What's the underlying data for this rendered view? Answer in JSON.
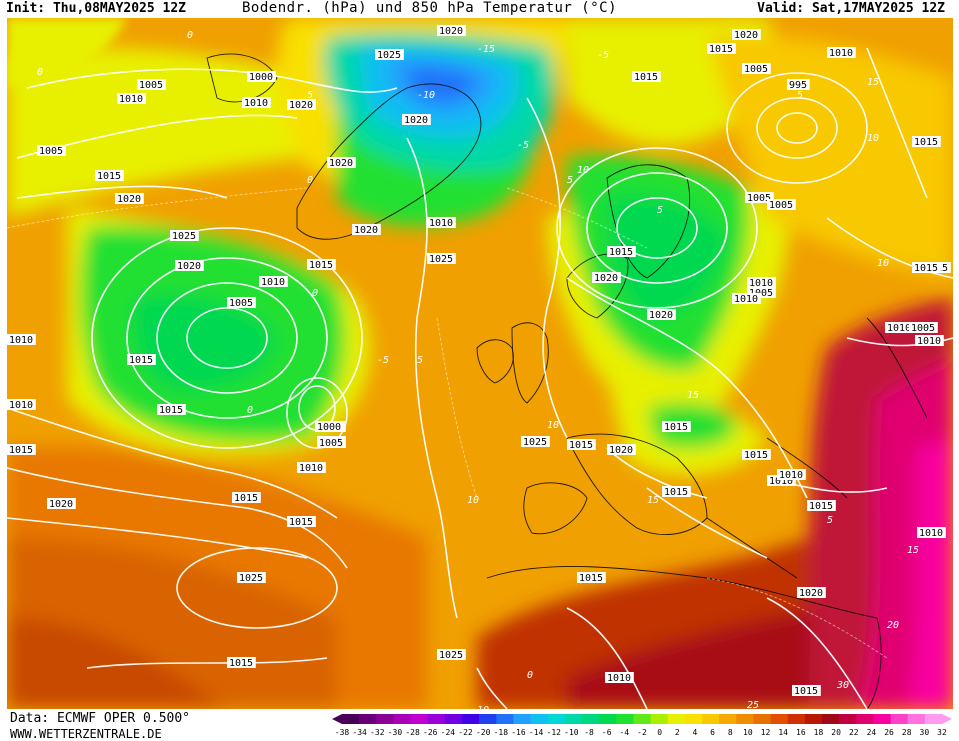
{
  "header": {
    "init": "Init: Thu,08MAY2025 12Z",
    "title": "Bodendr. (hPa) und 850 hPa Temperatur (°C)",
    "valid": "Valid: Sat,17MAY2025 12Z"
  },
  "footer": {
    "data_source": "Data: ECMWF OPER 0.500°",
    "url": "WWW.WETTERZENTRALE.DE"
  },
  "legend": {
    "ticks": [
      "-38",
      "-34",
      "-32",
      "-30",
      "-28",
      "-26",
      "-24",
      "-22",
      "-20",
      "-18",
      "-16",
      "-14",
      "-12",
      "-10",
      "-8",
      "-6",
      "-4",
      "-2",
      "0",
      "2",
      "4",
      "6",
      "8",
      "10",
      "12",
      "14",
      "16",
      "18",
      "20",
      "22",
      "24",
      "26",
      "28",
      "30",
      "32"
    ],
    "colors": [
      "#4a0058",
      "#6a0078",
      "#8c0096",
      "#a800b4",
      "#c000d0",
      "#9a00d8",
      "#7000e0",
      "#4000e8",
      "#2040f0",
      "#2070f8",
      "#20a0ff",
      "#10c0f0",
      "#00d8d8",
      "#00d8a8",
      "#00d880",
      "#00d850",
      "#20e030",
      "#60e818",
      "#a8f000",
      "#e8f000",
      "#f8e000",
      "#f8c800",
      "#f8a800",
      "#f08c00",
      "#e87000",
      "#e05000",
      "#d03000",
      "#b81800",
      "#a00818",
      "#c00040",
      "#e00070",
      "#f800a0",
      "#ff40c8",
      "#ff70e0",
      "#ff9cf0"
    ]
  },
  "map": {
    "pressure_labels": [
      {
        "text": "1020"
      },
      {
        "text": "1025"
      },
      {
        "text": "1015"
      },
      {
        "text": "1020"
      },
      {
        "text": "1015"
      },
      {
        "text": "1005"
      },
      {
        "text": "1010"
      },
      {
        "text": "1005"
      },
      {
        "text": "1000"
      },
      {
        "text": "1010"
      },
      {
        "text": "1020"
      },
      {
        "text": "1020"
      },
      {
        "text": "1010"
      },
      {
        "text": "1020"
      },
      {
        "text": "995"
      },
      {
        "text": "1005"
      },
      {
        "text": "1015"
      },
      {
        "text": "1005"
      },
      {
        "text": "1015"
      },
      {
        "text": "1025"
      },
      {
        "text": "1020"
      },
      {
        "text": "1020"
      },
      {
        "text": "1000"
      },
      {
        "text": "1005"
      },
      {
        "text": "1025"
      },
      {
        "text": "1015"
      },
      {
        "text": "1015"
      },
      {
        "text": "1020"
      },
      {
        "text": "1010"
      },
      {
        "text": "1020"
      },
      {
        "text": "1015"
      },
      {
        "text": "1005"
      },
      {
        "text": "1010"
      },
      {
        "text": "1015"
      },
      {
        "text": "1010"
      },
      {
        "text": "1015"
      },
      {
        "text": "1020"
      },
      {
        "text": "1015"
      },
      {
        "text": "1005"
      },
      {
        "text": "1010"
      },
      {
        "text": "1010"
      },
      {
        "text": "1005"
      },
      {
        "text": "1000"
      },
      {
        "text": "1005"
      },
      {
        "text": "1010"
      },
      {
        "text": "1015"
      },
      {
        "text": "1015"
      },
      {
        "text": "1025"
      },
      {
        "text": "1020"
      },
      {
        "text": "1015"
      },
      {
        "text": "1010"
      },
      {
        "text": "1015"
      },
      {
        "text": "1010"
      },
      {
        "text": "1015"
      },
      {
        "text": "1020"
      },
      {
        "text": "1025"
      },
      {
        "text": "1015"
      },
      {
        "text": "1015"
      },
      {
        "text": "1025"
      },
      {
        "text": "1010"
      },
      {
        "text": "1015"
      },
      {
        "text": "1010"
      },
      {
        "text": "1020"
      },
      {
        "text": "1015"
      },
      {
        "text": "1015"
      },
      {
        "text": "1010"
      },
      {
        "text": "1005"
      },
      {
        "text": "1010"
      },
      {
        "text": "1015"
      },
      {
        "text": "1010"
      }
    ],
    "temp_labels": [
      {
        "text": "-15"
      },
      {
        "text": "-10"
      },
      {
        "text": "-5"
      },
      {
        "text": "0"
      },
      {
        "text": "5"
      },
      {
        "text": "10"
      },
      {
        "text": "15"
      },
      {
        "text": "0"
      },
      {
        "text": "-5"
      },
      {
        "text": "5"
      },
      {
        "text": "10"
      },
      {
        "text": "0"
      },
      {
        "text": "-5"
      },
      {
        "text": "0"
      },
      {
        "text": "10"
      },
      {
        "text": "5"
      },
      {
        "text": "10"
      },
      {
        "text": "15"
      },
      {
        "text": "5"
      },
      {
        "text": "15"
      },
      {
        "text": "0"
      },
      {
        "text": "10"
      },
      {
        "text": "5"
      },
      {
        "text": "5"
      },
      {
        "text": "10"
      },
      {
        "text": "15"
      },
      {
        "text": "30"
      },
      {
        "text": "25"
      },
      {
        "text": "20"
      },
      {
        "text": "0"
      }
    ]
  }
}
